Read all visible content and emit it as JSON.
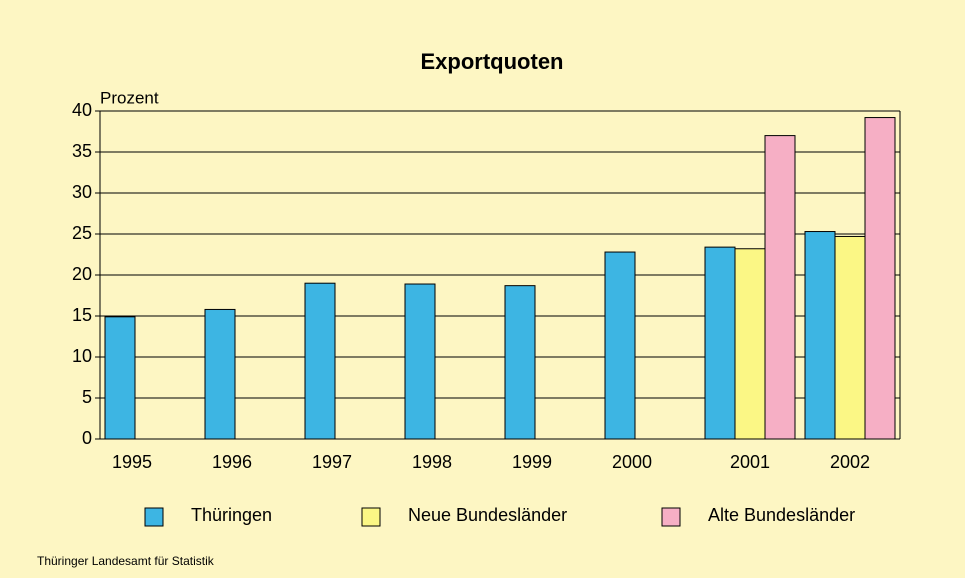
{
  "chart_data": {
    "type": "bar",
    "title": "Exportquoten",
    "y_label": "Prozent",
    "categories": [
      "1995",
      "1996",
      "1997",
      "1998",
      "1999",
      "2000",
      "2001",
      "2002"
    ],
    "series": [
      {
        "name": "Thüringen",
        "color": "#3db5e3",
        "values": [
          14.9,
          15.8,
          19.0,
          18.9,
          18.7,
          22.8,
          23.4,
          25.3
        ]
      },
      {
        "name": "Neue Bundesländer",
        "color": "#fbf785",
        "values": [
          null,
          null,
          null,
          null,
          null,
          null,
          23.2,
          24.7
        ]
      },
      {
        "name": "Alte Bundesländer",
        "color": "#f6afc5",
        "values": [
          null,
          null,
          null,
          null,
          null,
          null,
          37.0,
          39.2
        ]
      }
    ],
    "ylim": [
      0,
      40
    ],
    "yticks": [
      0,
      5,
      10,
      15,
      20,
      25,
      30,
      35,
      40
    ],
    "grid": true,
    "source": "Thüringer Landesamt für Statistik"
  }
}
